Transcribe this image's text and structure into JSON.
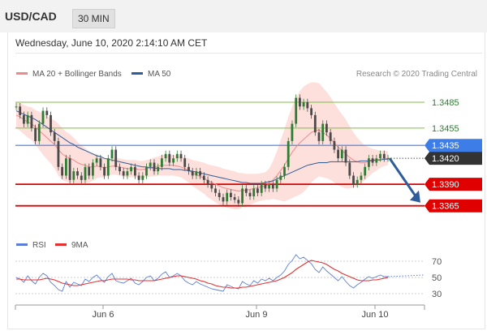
{
  "header": {
    "symbol": "USD/CAD",
    "timeframe": "30 MIN"
  },
  "timestamp": "Wednesday, June 10, 2020 2:14:10 AM CET",
  "legend": {
    "items": [
      {
        "label": "MA 20 + Bollinger Bands",
        "color": "#f08a8a"
      },
      {
        "label": "MA 50",
        "color": "#2f5c9a"
      }
    ],
    "credit": "Research © 2020 Trading Central"
  },
  "rsi_legend": [
    {
      "label": "RSI",
      "color": "#5b7fd6"
    },
    {
      "label": "9MA",
      "color": "#e53030"
    }
  ],
  "chart_data": [
    {
      "type": "candlestick",
      "symbol": "USD/CAD",
      "interval": "30 MIN",
      "x_labels": [
        "Jun 6",
        "Jun 9",
        "Jun 10"
      ],
      "ylim": [
        1.3345,
        1.35
      ],
      "levels": [
        {
          "value": "1.3485",
          "kind": "target",
          "color": "#7cbf3f"
        },
        {
          "value": "1.3455",
          "kind": "target",
          "color": "#7cbf3f"
        },
        {
          "value": "1.3435",
          "kind": "pivot",
          "color": "#3d7de8"
        },
        {
          "value": "1.3420",
          "kind": "last",
          "color": "#333333"
        },
        {
          "value": "1.3390",
          "kind": "support",
          "color": "#e00000"
        },
        {
          "value": "1.3365",
          "kind": "support",
          "color": "#e00000"
        }
      ],
      "close": [
        1.348,
        1.347,
        1.346,
        1.347,
        1.3455,
        1.344,
        1.346,
        1.3475,
        1.347,
        1.345,
        1.344,
        1.341,
        1.34,
        1.342,
        1.3395,
        1.3405,
        1.34,
        1.3395,
        1.341,
        1.34,
        1.3415,
        1.342,
        1.341,
        1.34,
        1.342,
        1.343,
        1.341,
        1.3405,
        1.34,
        1.3405,
        1.341,
        1.34,
        1.3395,
        1.34,
        1.341,
        1.3415,
        1.3405,
        1.341,
        1.342,
        1.3425,
        1.3415,
        1.342,
        1.3425,
        1.342,
        1.341,
        1.3405,
        1.34,
        1.3405,
        1.34,
        1.3395,
        1.339,
        1.3385,
        1.338,
        1.3375,
        1.337,
        1.338,
        1.3375,
        1.3372,
        1.3368,
        1.3385,
        1.338,
        1.3376,
        1.3385,
        1.338,
        1.339,
        1.3385,
        1.339,
        1.3385,
        1.3395,
        1.34,
        1.341,
        1.344,
        1.346,
        1.349,
        1.348,
        1.3485,
        1.3478,
        1.347,
        1.345,
        1.344,
        1.346,
        1.345,
        1.344,
        1.343,
        1.342,
        1.343,
        1.3415,
        1.34,
        1.339,
        1.3395,
        1.34,
        1.341,
        1.342,
        1.3415,
        1.342,
        1.3425,
        1.342,
        1.342
      ],
      "ma20": [
        1.347,
        1.3468,
        1.3465,
        1.3462,
        1.346,
        1.3456,
        1.3452,
        1.3448,
        1.3444,
        1.344,
        1.3436,
        1.343,
        1.3425,
        1.3422,
        1.342,
        1.3418,
        1.3415,
        1.3413,
        1.3412,
        1.341,
        1.341,
        1.3411,
        1.341,
        1.3409,
        1.341,
        1.3411,
        1.3411,
        1.341,
        1.3409,
        1.3408,
        1.3408,
        1.3408,
        1.3407,
        1.3407,
        1.3408,
        1.3409,
        1.341,
        1.3411,
        1.3412,
        1.3412,
        1.3412,
        1.3412,
        1.3411,
        1.341,
        1.3408,
        1.3406,
        1.3403,
        1.3401,
        1.3399,
        1.3397,
        1.3394,
        1.3392,
        1.339,
        1.3388,
        1.3386,
        1.3385,
        1.3384,
        1.3383,
        1.3382,
        1.3383,
        1.3383,
        1.3384,
        1.3385,
        1.3386,
        1.3387,
        1.3388,
        1.339,
        1.3395,
        1.34,
        1.3406,
        1.3412,
        1.342,
        1.3427,
        1.3433,
        1.3438,
        1.3442,
        1.3446,
        1.345,
        1.3452,
        1.3453,
        1.345,
        1.3447,
        1.3443,
        1.3438,
        1.3433,
        1.3429,
        1.3425,
        1.3421,
        1.3418,
        1.3416,
        1.3415,
        1.3415,
        1.3416,
        1.3417,
        1.3418,
        1.3419,
        1.342,
        1.342
      ],
      "ma50": [
        1.3475,
        1.3473,
        1.3471,
        1.3469,
        1.3467,
        1.3465,
        1.3462,
        1.3459,
        1.3456,
        1.3453,
        1.345,
        1.3447,
        1.3444,
        1.3441,
        1.3438,
        1.3436,
        1.3433,
        1.3431,
        1.3429,
        1.3427,
        1.3425,
        1.3423,
        1.3422,
        1.342,
        1.3419,
        1.3418,
        1.3417,
        1.3416,
        1.3415,
        1.3414,
        1.3413,
        1.3412,
        1.3411,
        1.341,
        1.341,
        1.3409,
        1.3409,
        1.3408,
        1.3408,
        1.3408,
        1.3408,
        1.3407,
        1.3407,
        1.3407,
        1.3406,
        1.3406,
        1.3405,
        1.3404,
        1.3403,
        1.3402,
        1.3401,
        1.34,
        1.3399,
        1.3398,
        1.3397,
        1.3396,
        1.3395,
        1.3394,
        1.3393,
        1.3392,
        1.3392,
        1.3391,
        1.3391,
        1.3391,
        1.3391,
        1.3392,
        1.3393,
        1.3394,
        1.3396,
        1.3398,
        1.34,
        1.3402,
        1.3404,
        1.3406,
        1.3408,
        1.341,
        1.3412,
        1.3413,
        1.3414,
        1.3415,
        1.3415,
        1.3415,
        1.3416,
        1.3416,
        1.3416,
        1.3416,
        1.3416,
        1.3416,
        1.3416,
        1.3416,
        1.3417,
        1.3417,
        1.3417,
        1.3418,
        1.3418,
        1.3418,
        1.3419,
        1.3419
      ],
      "bb_halfwidth": [
        0.0015,
        0.0016,
        0.0017,
        0.0018,
        0.0019,
        0.002,
        0.0022,
        0.0024,
        0.0025,
        0.0026,
        0.0028,
        0.003,
        0.003,
        0.0029,
        0.0028,
        0.0026,
        0.0024,
        0.0022,
        0.002,
        0.0018,
        0.0016,
        0.0014,
        0.0012,
        0.0011,
        0.001,
        0.001,
        0.001,
        0.001,
        0.001,
        0.001,
        0.001,
        0.001,
        0.001,
        0.001,
        0.001,
        0.001,
        0.0011,
        0.0011,
        0.0012,
        0.0012,
        0.0012,
        0.0012,
        0.0012,
        0.0012,
        0.0013,
        0.0014,
        0.0015,
        0.0016,
        0.0017,
        0.0018,
        0.0019,
        0.002,
        0.0021,
        0.0022,
        0.0022,
        0.0022,
        0.0022,
        0.0022,
        0.0021,
        0.002,
        0.0019,
        0.0018,
        0.0017,
        0.0016,
        0.0016,
        0.0016,
        0.0018,
        0.0022,
        0.0028,
        0.0035,
        0.0042,
        0.0048,
        0.0053,
        0.0057,
        0.006,
        0.0061,
        0.006,
        0.0058,
        0.0056,
        0.0054,
        0.0052,
        0.005,
        0.0048,
        0.0046,
        0.0044,
        0.0042,
        0.004,
        0.0036,
        0.0032,
        0.0028,
        0.0024,
        0.002,
        0.0017,
        0.0014,
        0.0012,
        0.001,
        0.0009,
        0.0008
      ],
      "forecast": {
        "from": "1.3420",
        "to": "1.3365",
        "color": "#2f5c9a"
      }
    },
    {
      "type": "line",
      "name": "RSI",
      "levels": [
        "70",
        "50",
        "30"
      ],
      "ylim": [
        20,
        80
      ],
      "series": [
        {
          "name": "RSI",
          "color": "#5b7fd6",
          "values": [
            50,
            48,
            44,
            52,
            46,
            42,
            50,
            55,
            52,
            44,
            40,
            35,
            33,
            45,
            38,
            44,
            42,
            40,
            48,
            45,
            50,
            53,
            48,
            44,
            51,
            55,
            46,
            44,
            43,
            46,
            49,
            43,
            41,
            45,
            50,
            52,
            46,
            49,
            54,
            57,
            50,
            52,
            55,
            52,
            46,
            43,
            41,
            45,
            42,
            40,
            38,
            36,
            35,
            34,
            33,
            41,
            39,
            37,
            36,
            45,
            42,
            40,
            46,
            43,
            48,
            46,
            49,
            46,
            50,
            53,
            58,
            66,
            71,
            78,
            73,
            75,
            71,
            67,
            60,
            56,
            63,
            58,
            54,
            50,
            46,
            51,
            45,
            40,
            37,
            41,
            44,
            48,
            51,
            49,
            51,
            53,
            51,
            51
          ]
        },
        {
          "name": "9MA",
          "color": "#e53030",
          "values": [
            48,
            48,
            47,
            47,
            47,
            47,
            47,
            48,
            49,
            48,
            47,
            45,
            43,
            42,
            41,
            40,
            40,
            41,
            42,
            43,
            44,
            45,
            46,
            46,
            47,
            48,
            48,
            48,
            48,
            48,
            47,
            47,
            46,
            46,
            46,
            46,
            46,
            47,
            48,
            49,
            50,
            51,
            52,
            52,
            51,
            50,
            49,
            48,
            46,
            45,
            43,
            42,
            40,
            39,
            38,
            38,
            37,
            37,
            37,
            38,
            38,
            39,
            40,
            41,
            42,
            43,
            44,
            45,
            46,
            48,
            50,
            53,
            56,
            60,
            63,
            66,
            69,
            71,
            70,
            69,
            68,
            66,
            63,
            60,
            58,
            55,
            53,
            51,
            49,
            47,
            46,
            46,
            46,
            47,
            47,
            48,
            49,
            50
          ]
        }
      ]
    }
  ]
}
